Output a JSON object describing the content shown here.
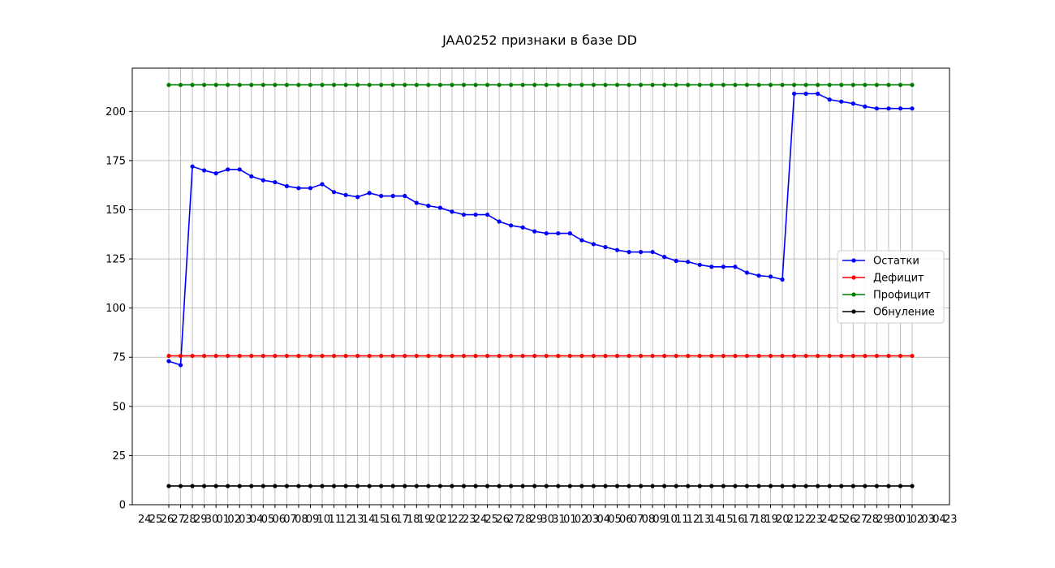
{
  "chart_data": {
    "type": "line",
    "title": "JAA0252 признаки в базе DD",
    "xlabel": "",
    "ylabel": "",
    "ylim": [
      0,
      222
    ],
    "grid": true,
    "legend_position": "center-right",
    "y_ticks": [
      0,
      25,
      50,
      75,
      100,
      125,
      150,
      175,
      200
    ],
    "x_tick_labels_visible": [
      "24",
      "25",
      "26",
      "27",
      "28",
      "29",
      "30",
      "01",
      "02",
      "03",
      "04",
      "05",
      "06",
      "07",
      "08",
      "09",
      "10",
      "11",
      "12",
      "13",
      "14",
      "15",
      "16",
      "17",
      "18",
      "19",
      "20",
      "21",
      "22",
      "23",
      "24",
      "25",
      "26",
      "27",
      "28",
      "29",
      "30",
      "31",
      "01",
      "02",
      "03",
      "04",
      "05",
      "06",
      "07",
      "08",
      "09",
      "10",
      "11",
      "12",
      "13",
      "14",
      "15",
      "16",
      "17",
      "18",
      "19",
      "20",
      "21",
      "22",
      "23",
      "24",
      "25",
      "26",
      "27",
      "28",
      "29",
      "30",
      "01",
      "02",
      "03",
      "04",
      "23"
    ],
    "x_count": 64,
    "series": [
      {
        "name": "Остатки",
        "color": "#0000ff",
        "values": [
          73,
          71,
          172,
          170,
          168.5,
          170.5,
          170.5,
          167,
          165,
          164,
          162,
          161,
          161,
          163,
          159,
          157.5,
          156.5,
          158.5,
          157,
          157,
          157,
          153.5,
          152,
          151,
          149,
          147.5,
          147.5,
          147.5,
          144,
          142,
          141,
          139,
          138,
          138,
          138,
          134.5,
          132.5,
          131,
          129.5,
          128.5,
          128.5,
          128.5,
          126,
          124,
          123.5,
          122,
          121,
          121,
          121,
          118,
          116.5,
          116,
          114.5,
          209,
          209,
          209,
          206,
          205,
          204,
          202.5,
          201.5,
          201.5,
          201.5,
          201.5
        ]
      },
      {
        "name": "Дефицит",
        "color": "#ff0000",
        "values": [
          75.7,
          75.7,
          75.7,
          75.7,
          75.7,
          75.7,
          75.7,
          75.7,
          75.7,
          75.7,
          75.7,
          75.7,
          75.7,
          75.7,
          75.7,
          75.7,
          75.7,
          75.7,
          75.7,
          75.7,
          75.7,
          75.7,
          75.7,
          75.7,
          75.7,
          75.7,
          75.7,
          75.7,
          75.7,
          75.7,
          75.7,
          75.7,
          75.7,
          75.7,
          75.7,
          75.7,
          75.7,
          75.7,
          75.7,
          75.7,
          75.7,
          75.7,
          75.7,
          75.7,
          75.7,
          75.7,
          75.7,
          75.7,
          75.7,
          75.7,
          75.7,
          75.7,
          75.7,
          75.7,
          75.7,
          75.7,
          75.7,
          75.7,
          75.7,
          75.7,
          75.7,
          75.7,
          75.7,
          75.7
        ]
      },
      {
        "name": "Профицит",
        "color": "#008000",
        "values": [
          213.5,
          213.5,
          213.5,
          213.5,
          213.5,
          213.5,
          213.5,
          213.5,
          213.5,
          213.5,
          213.5,
          213.5,
          213.5,
          213.5,
          213.5,
          213.5,
          213.5,
          213.5,
          213.5,
          213.5,
          213.5,
          213.5,
          213.5,
          213.5,
          213.5,
          213.5,
          213.5,
          213.5,
          213.5,
          213.5,
          213.5,
          213.5,
          213.5,
          213.5,
          213.5,
          213.5,
          213.5,
          213.5,
          213.5,
          213.5,
          213.5,
          213.5,
          213.5,
          213.5,
          213.5,
          213.5,
          213.5,
          213.5,
          213.5,
          213.5,
          213.5,
          213.5,
          213.5,
          213.5,
          213.5,
          213.5,
          213.5,
          213.5,
          213.5,
          213.5,
          213.5,
          213.5,
          213.5,
          213.5
        ]
      },
      {
        "name": "Обнуление",
        "color": "#000000",
        "values": [
          9.5,
          9.5,
          9.5,
          9.5,
          9.5,
          9.5,
          9.5,
          9.5,
          9.5,
          9.5,
          9.5,
          9.5,
          9.5,
          9.5,
          9.5,
          9.5,
          9.5,
          9.5,
          9.5,
          9.5,
          9.5,
          9.5,
          9.5,
          9.5,
          9.5,
          9.5,
          9.5,
          9.5,
          9.5,
          9.5,
          9.5,
          9.5,
          9.5,
          9.5,
          9.5,
          9.5,
          9.5,
          9.5,
          9.5,
          9.5,
          9.5,
          9.5,
          9.5,
          9.5,
          9.5,
          9.5,
          9.5,
          9.5,
          9.5,
          9.5,
          9.5,
          9.5,
          9.5,
          9.5,
          9.5,
          9.5,
          9.5,
          9.5,
          9.5,
          9.5,
          9.5,
          9.5,
          9.5,
          9.5
        ]
      }
    ]
  }
}
